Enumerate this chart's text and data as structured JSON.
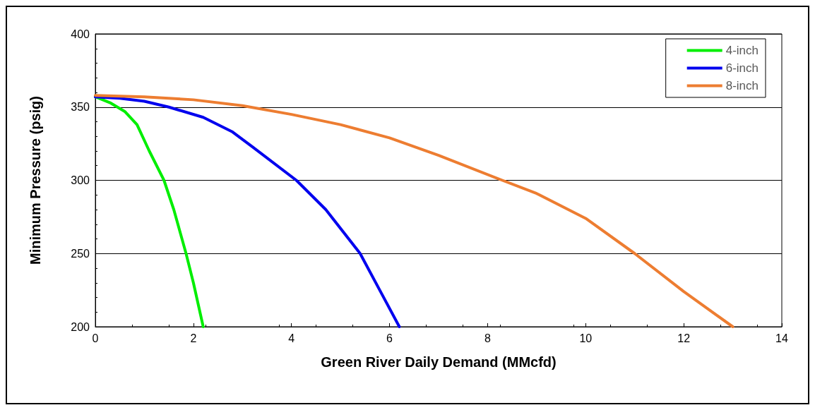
{
  "chart_data": {
    "type": "line",
    "xlabel": "Green River Daily Demand (MMcfd)",
    "ylabel": "Minimum Pressure (psig)",
    "xlim": [
      0,
      14
    ],
    "xticks": [
      0,
      2,
      4,
      6,
      8,
      10,
      12,
      14
    ],
    "ylim": [
      200,
      400
    ],
    "yticks": [
      200,
      250,
      300,
      350,
      400
    ],
    "grid": "y",
    "legend": "top right",
    "marker": "none",
    "line_style": "solid",
    "series": [
      {
        "name": "4-inch",
        "color": "#00ee00",
        "x": [
          0,
          0.3,
          0.6,
          0.85,
          1.1,
          1.4,
          1.6,
          1.85,
          2.0,
          2.2
        ],
        "values": [
          357,
          353,
          347,
          338,
          320,
          300,
          280,
          250,
          230,
          200
        ]
      },
      {
        "name": "6-inch",
        "color": "#0000ee",
        "x": [
          0,
          0.5,
          1,
          1.5,
          2.2,
          2.8,
          3.2,
          4.1,
          4.7,
          5.4,
          5.8,
          6.2
        ],
        "values": [
          357,
          356,
          354,
          350,
          343,
          333,
          323,
          300,
          280,
          250,
          225,
          200
        ]
      },
      {
        "name": "8-inch",
        "color": "#ed7d31",
        "x": [
          0,
          1,
          2,
          3,
          4,
          5,
          6,
          7,
          8.3,
          9,
          10,
          11,
          12,
          13
        ],
        "values": [
          358,
          357,
          355,
          351,
          345,
          338,
          329,
          317,
          300,
          291,
          274,
          250,
          224,
          200
        ]
      }
    ]
  }
}
